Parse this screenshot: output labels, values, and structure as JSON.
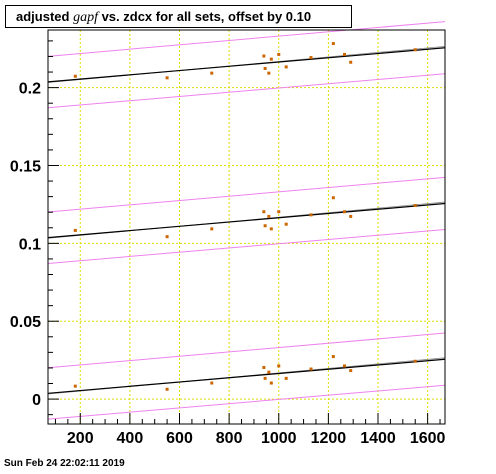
{
  "title": {
    "prefix": "adjusted ",
    "symbol": "gapf",
    "suffix": " vs. zdcx for all sets, offset by 0.10"
  },
  "timestamp": "Sun Feb 24 22:02:11 2019",
  "colors": {
    "points": "#cc6600",
    "fit": "#000000",
    "band": "#ee82ee",
    "grid": "#dddd00",
    "thin_fit": "#888888"
  },
  "chart_data": {
    "type": "scatter",
    "title": "adjusted gapf vs. zdcx for all sets, offset by 0.10",
    "xlabel": "",
    "ylabel": "",
    "xlim": [
      70,
      1670
    ],
    "ylim": [
      -0.016,
      0.237
    ],
    "xticks": [
      200,
      400,
      600,
      800,
      1000,
      1200,
      1400,
      1600
    ],
    "xtick_labels": [
      "200",
      "400",
      "600",
      "800",
      "1000",
      "1200",
      "1400",
      "1600"
    ],
    "yticks": [
      0,
      0.05,
      0.1,
      0.15,
      0.2
    ],
    "ytick_labels": [
      "0",
      "0.05",
      "0.1",
      "0.15",
      "0.2"
    ],
    "grid": true,
    "series": [
      {
        "offset": 0.2,
        "x": [
          180,
          550,
          730,
          940,
          945,
          960,
          970,
          1000,
          1030,
          1130,
          1220,
          1265,
          1290,
          1550
        ],
        "y": [
          0.2073,
          0.2063,
          0.2093,
          0.2203,
          0.2123,
          0.2093,
          0.2183,
          0.2213,
          0.2133,
          0.2193,
          0.2283,
          0.2213,
          0.2163,
          0.2243
        ],
        "fit": [
          0.2037,
          0.2256
        ],
        "band_upper": [
          0.2201,
          0.2424
        ],
        "band_lower": [
          0.1871,
          0.2089
        ],
        "thin_fit": [
          0.2033,
          0.2265
        ]
      },
      {
        "offset": 0.1,
        "x": [
          180,
          550,
          730,
          940,
          945,
          960,
          970,
          1000,
          1030,
          1130,
          1220,
          1265,
          1290,
          1550
        ],
        "y": [
          0.1083,
          0.1043,
          0.1093,
          0.1203,
          0.1113,
          0.1173,
          0.1093,
          0.1203,
          0.1123,
          0.1183,
          0.1293,
          0.1203,
          0.1173,
          0.1243
        ],
        "fit": [
          0.1037,
          0.1256
        ],
        "band_upper": [
          0.1201,
          0.1424
        ],
        "band_lower": [
          0.0871,
          0.1089
        ],
        "thin_fit": [
          0.1033,
          0.1265
        ]
      },
      {
        "offset": 0,
        "x": [
          180,
          550,
          730,
          940,
          945,
          960,
          970,
          1000,
          1030,
          1130,
          1220,
          1265,
          1290,
          1550
        ],
        "y": [
          0.0083,
          0.0063,
          0.0103,
          0.0203,
          0.0133,
          0.0173,
          0.0103,
          0.0213,
          0.0133,
          0.0193,
          0.0273,
          0.0213,
          0.0183,
          0.0243
        ],
        "fit": [
          0.0037,
          0.0256
        ],
        "band_upper": [
          0.0201,
          0.0424
        ],
        "band_lower": [
          -0.0129,
          0.0089
        ],
        "thin_fit": [
          0.0033,
          0.0265
        ]
      }
    ]
  }
}
